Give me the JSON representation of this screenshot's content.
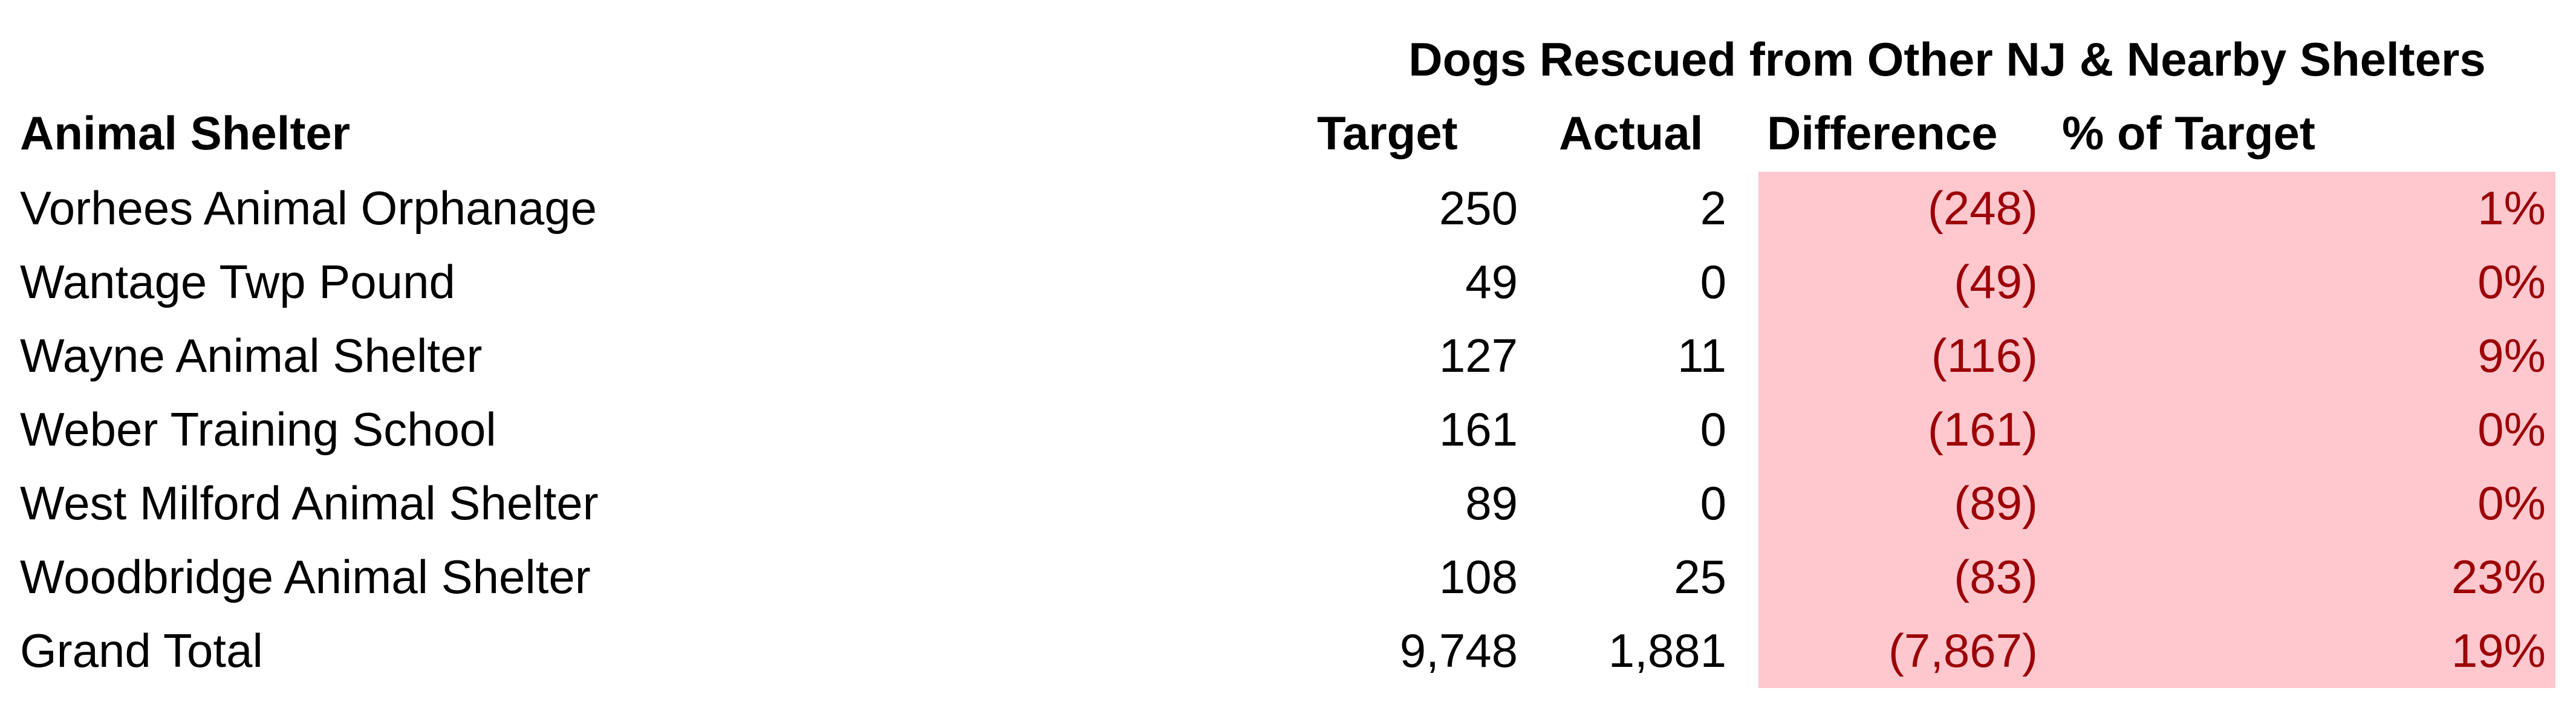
{
  "header": {
    "group_title": "Dogs Rescued from Other NJ & Nearby Shelters",
    "columns": [
      "Animal Shelter",
      "Target",
      "Actual",
      "Difference",
      "% of Target"
    ]
  },
  "table": {
    "rows": [
      [
        "Vorhees Animal Orphanage",
        "250",
        "2",
        "(248)",
        "1%"
      ],
      [
        "Wantage Twp Pound",
        "49",
        "0",
        "(49)",
        "0%"
      ],
      [
        "Wayne Animal Shelter",
        "127",
        "11",
        "(116)",
        "9%"
      ],
      [
        "Weber Training School",
        "161",
        "0",
        "(161)",
        "0%"
      ],
      [
        "West Milford Animal Shelter",
        "89",
        "0",
        "(89)",
        "0%"
      ],
      [
        "Woodbridge Animal Shelter",
        "108",
        "25",
        "(83)",
        "23%"
      ],
      [
        "Grand Total",
        "9,748",
        "1,881",
        "(7,867)",
        "19%"
      ]
    ]
  }
}
